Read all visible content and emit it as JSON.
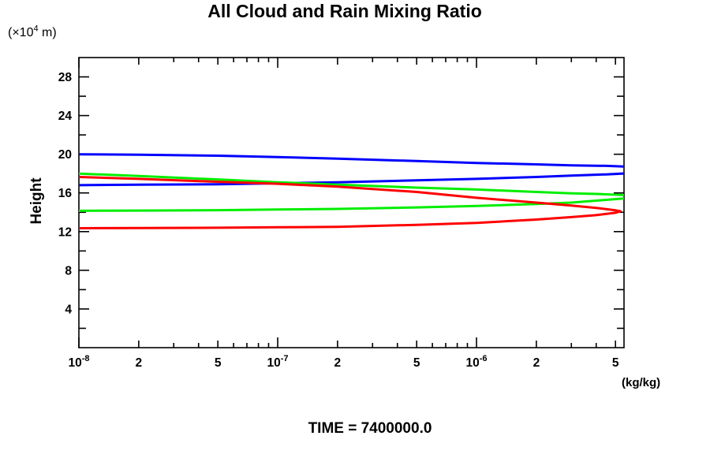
{
  "chart_data": {
    "type": "line",
    "title": "All Cloud and Rain Mixing Ratio",
    "caption": "TIME = 7400000.0",
    "ylabel": "Height",
    "y_unit": {
      "pre": "(×10",
      "exp": "4",
      "post": " m)"
    },
    "x_unit": "(kg/kg)",
    "x_axis": {
      "scale": "log",
      "min": 1e-08,
      "max": 5.52e-06,
      "ticks": [
        {
          "value": 1e-08,
          "base": "10",
          "exp": "-8"
        },
        {
          "value": 2e-08,
          "text": "2"
        },
        {
          "value": 5e-08,
          "text": "5"
        },
        {
          "value": 1e-07,
          "base": "10",
          "exp": "-7"
        },
        {
          "value": 2e-07,
          "text": "2"
        },
        {
          "value": 5e-07,
          "text": "5"
        },
        {
          "value": 1e-06,
          "base": "10",
          "exp": "-6"
        },
        {
          "value": 2e-06,
          "text": "2"
        },
        {
          "value": 5e-06,
          "text": "5"
        }
      ],
      "minor_mantissas": [
        2,
        3,
        4,
        5,
        6,
        7,
        8,
        9
      ],
      "decades": [
        -8,
        -7,
        -6
      ]
    },
    "y_axis": {
      "min": 0,
      "max": 30,
      "major_ticks": [
        4,
        8,
        12,
        16,
        20,
        24,
        28
      ],
      "minor_step": 2
    },
    "grid": false,
    "legend": "none",
    "series": [
      {
        "name": "blue-profile",
        "color": "#0000ff",
        "points": [
          [
            1e-08,
            20.0
          ],
          [
            2e-08,
            19.95
          ],
          [
            5e-08,
            19.85
          ],
          [
            1e-07,
            19.7
          ],
          [
            2e-07,
            19.55
          ],
          [
            5e-07,
            19.3
          ],
          [
            1e-06,
            19.1
          ],
          [
            2e-06,
            18.95
          ],
          [
            3e-06,
            18.85
          ],
          [
            4.5e-06,
            18.8
          ],
          [
            6e-06,
            18.7
          ],
          [
            8e-06,
            18.45
          ],
          [
            6e-06,
            18.05
          ],
          [
            4.5e-06,
            17.92
          ],
          [
            3e-06,
            17.8
          ],
          [
            2e-06,
            17.65
          ],
          [
            1e-06,
            17.45
          ],
          [
            5e-07,
            17.3
          ],
          [
            2e-07,
            17.1
          ],
          [
            1e-07,
            17.0
          ],
          [
            5e-08,
            16.9
          ],
          [
            2e-08,
            16.85
          ],
          [
            1e-08,
            16.8
          ]
        ]
      },
      {
        "name": "green-profile",
        "color": "#00ee00",
        "points": [
          [
            1e-08,
            18.0
          ],
          [
            2e-08,
            17.75
          ],
          [
            5e-08,
            17.4
          ],
          [
            1e-07,
            17.1
          ],
          [
            2e-07,
            16.85
          ],
          [
            5e-07,
            16.55
          ],
          [
            1e-06,
            16.35
          ],
          [
            2e-06,
            16.1
          ],
          [
            3e-06,
            15.95
          ],
          [
            4e-06,
            15.9
          ],
          [
            5.5e-06,
            15.78
          ],
          [
            6.2e-06,
            15.6
          ],
          [
            5.5e-06,
            15.42
          ],
          [
            4e-06,
            15.2
          ],
          [
            3e-06,
            15.0
          ],
          [
            2e-06,
            14.85
          ],
          [
            1e-06,
            14.65
          ],
          [
            5e-07,
            14.5
          ],
          [
            2e-07,
            14.35
          ],
          [
            1e-07,
            14.28
          ],
          [
            5e-08,
            14.22
          ],
          [
            2e-08,
            14.18
          ],
          [
            1e-08,
            14.15
          ]
        ]
      },
      {
        "name": "red-profile",
        "color": "#ff0000",
        "points": [
          [
            1e-08,
            17.65
          ],
          [
            2e-08,
            17.45
          ],
          [
            5e-08,
            17.15
          ],
          [
            1e-07,
            16.95
          ],
          [
            2e-07,
            16.65
          ],
          [
            5e-07,
            16.1
          ],
          [
            1e-06,
            15.5
          ],
          [
            2e-06,
            15.0
          ],
          [
            3e-06,
            14.7
          ],
          [
            4e-06,
            14.45
          ],
          [
            5e-06,
            14.2
          ],
          [
            5.3e-06,
            14.1
          ],
          [
            5e-06,
            13.95
          ],
          [
            4e-06,
            13.7
          ],
          [
            3e-06,
            13.5
          ],
          [
            2e-06,
            13.25
          ],
          [
            1e-06,
            12.9
          ],
          [
            5e-07,
            12.7
          ],
          [
            2e-07,
            12.5
          ],
          [
            1e-07,
            12.45
          ],
          [
            5e-08,
            12.4
          ],
          [
            2e-08,
            12.37
          ],
          [
            1e-08,
            12.35
          ]
        ]
      }
    ]
  }
}
